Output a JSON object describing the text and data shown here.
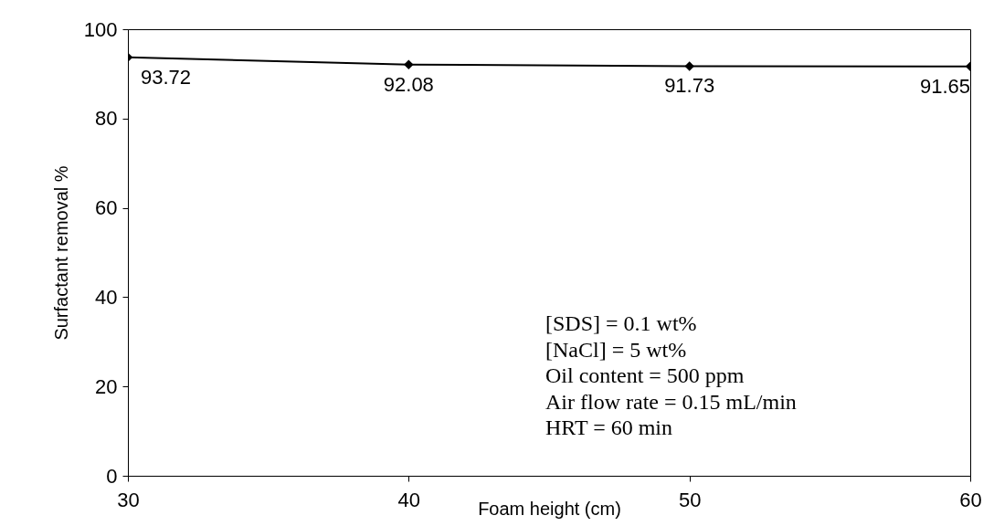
{
  "chart_data": {
    "type": "line",
    "xlabel": "Foam height (cm)",
    "ylabel": "Surfactant removal %",
    "x": [
      30,
      40,
      50,
      60
    ],
    "series": [
      {
        "color": "#000000",
        "values": [
          93.72,
          92.08,
          91.73,
          91.65
        ]
      }
    ],
    "xlim": [
      30,
      60
    ],
    "xticks": [
      30,
      40,
      50,
      60
    ],
    "ylim": [
      0,
      100
    ],
    "yticks": [
      0,
      20,
      40,
      60,
      80,
      100
    ],
    "marker": "diamond",
    "line_style": "solid",
    "data_labels": true,
    "grid": false,
    "annotations": [
      "[SDS] = 0.1 wt%",
      "[NaCl] = 5 wt%",
      "Oil content = 500 ppm",
      "Air flow rate = 0.15 mL/min",
      "HRT = 60 min"
    ]
  }
}
